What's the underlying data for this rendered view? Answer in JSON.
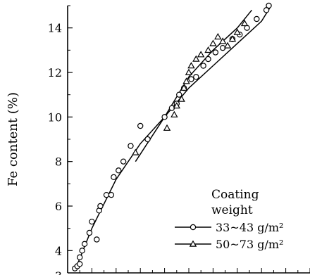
{
  "chart_data": {
    "type": "scatter",
    "title": "",
    "xlabel": "",
    "ylabel": "Fe content (%)",
    "ylim": [
      3,
      15
    ],
    "xlim": [
      0,
      10
    ],
    "y_ticks": [
      4,
      6,
      8,
      10,
      12,
      14
    ],
    "y_tick_labels": [
      "4",
      "6",
      "8",
      "10",
      "12",
      "14"
    ],
    "bottom_partial_label": "3",
    "grid": false,
    "legend_position": "bottom-right",
    "legend_title": "Coating\nweight",
    "series": [
      {
        "name": "33~43 g/m²",
        "marker": "circle",
        "points": [
          [
            0.3,
            3.2
          ],
          [
            0.4,
            3.3
          ],
          [
            0.5,
            3.7
          ],
          [
            0.5,
            3.4
          ],
          [
            0.6,
            4.0
          ],
          [
            0.7,
            4.3
          ],
          [
            0.9,
            4.8
          ],
          [
            1.0,
            5.3
          ],
          [
            1.3,
            5.8
          ],
          [
            1.35,
            6.0
          ],
          [
            1.2,
            4.5
          ],
          [
            1.6,
            6.5
          ],
          [
            1.8,
            6.5
          ],
          [
            1.9,
            7.3
          ],
          [
            2.1,
            7.6
          ],
          [
            2.3,
            8.0
          ],
          [
            2.6,
            8.7
          ],
          [
            3.0,
            9.6
          ],
          [
            3.3,
            9.0
          ],
          [
            4.0,
            10.0
          ],
          [
            4.3,
            10.4
          ],
          [
            4.5,
            10.6
          ],
          [
            4.6,
            11.0
          ],
          [
            4.8,
            11.3
          ],
          [
            5.1,
            11.7
          ],
          [
            5.3,
            11.8
          ],
          [
            5.6,
            12.3
          ],
          [
            5.8,
            12.6
          ],
          [
            6.1,
            12.9
          ],
          [
            6.4,
            13.1
          ],
          [
            6.8,
            13.5
          ],
          [
            7.1,
            13.7
          ],
          [
            7.4,
            14.0
          ],
          [
            7.8,
            14.4
          ],
          [
            8.2,
            14.8
          ],
          [
            8.3,
            15.0
          ]
        ],
        "curve": [
          [
            0.3,
            3.1
          ],
          [
            1.0,
            5.0
          ],
          [
            2.0,
            7.2
          ],
          [
            3.0,
            8.8
          ],
          [
            4.0,
            10.0
          ],
          [
            5.0,
            11.3
          ],
          [
            6.0,
            12.3
          ],
          [
            7.0,
            13.3
          ],
          [
            8.0,
            14.3
          ],
          [
            8.4,
            15.0
          ]
        ]
      },
      {
        "name": "50~73 g/m²",
        "marker": "triangle",
        "points": [
          [
            2.8,
            8.4
          ],
          [
            4.1,
            9.5
          ],
          [
            4.4,
            10.1
          ],
          [
            4.5,
            10.5
          ],
          [
            4.7,
            10.8
          ],
          [
            4.8,
            11.3
          ],
          [
            4.9,
            11.6
          ],
          [
            5.0,
            12.0
          ],
          [
            5.1,
            12.3
          ],
          [
            5.3,
            12.6
          ],
          [
            5.5,
            12.8
          ],
          [
            5.8,
            13.0
          ],
          [
            6.0,
            13.3
          ],
          [
            6.2,
            13.6
          ],
          [
            6.4,
            13.4
          ],
          [
            6.6,
            13.2
          ],
          [
            6.8,
            13.5
          ],
          [
            7.0,
            13.8
          ],
          [
            7.3,
            14.2
          ]
        ],
        "curve": [
          [
            2.8,
            8.0
          ],
          [
            4.0,
            10.0
          ],
          [
            5.0,
            11.8
          ],
          [
            6.0,
            13.0
          ],
          [
            7.0,
            14.0
          ],
          [
            7.6,
            14.8
          ]
        ]
      }
    ]
  }
}
